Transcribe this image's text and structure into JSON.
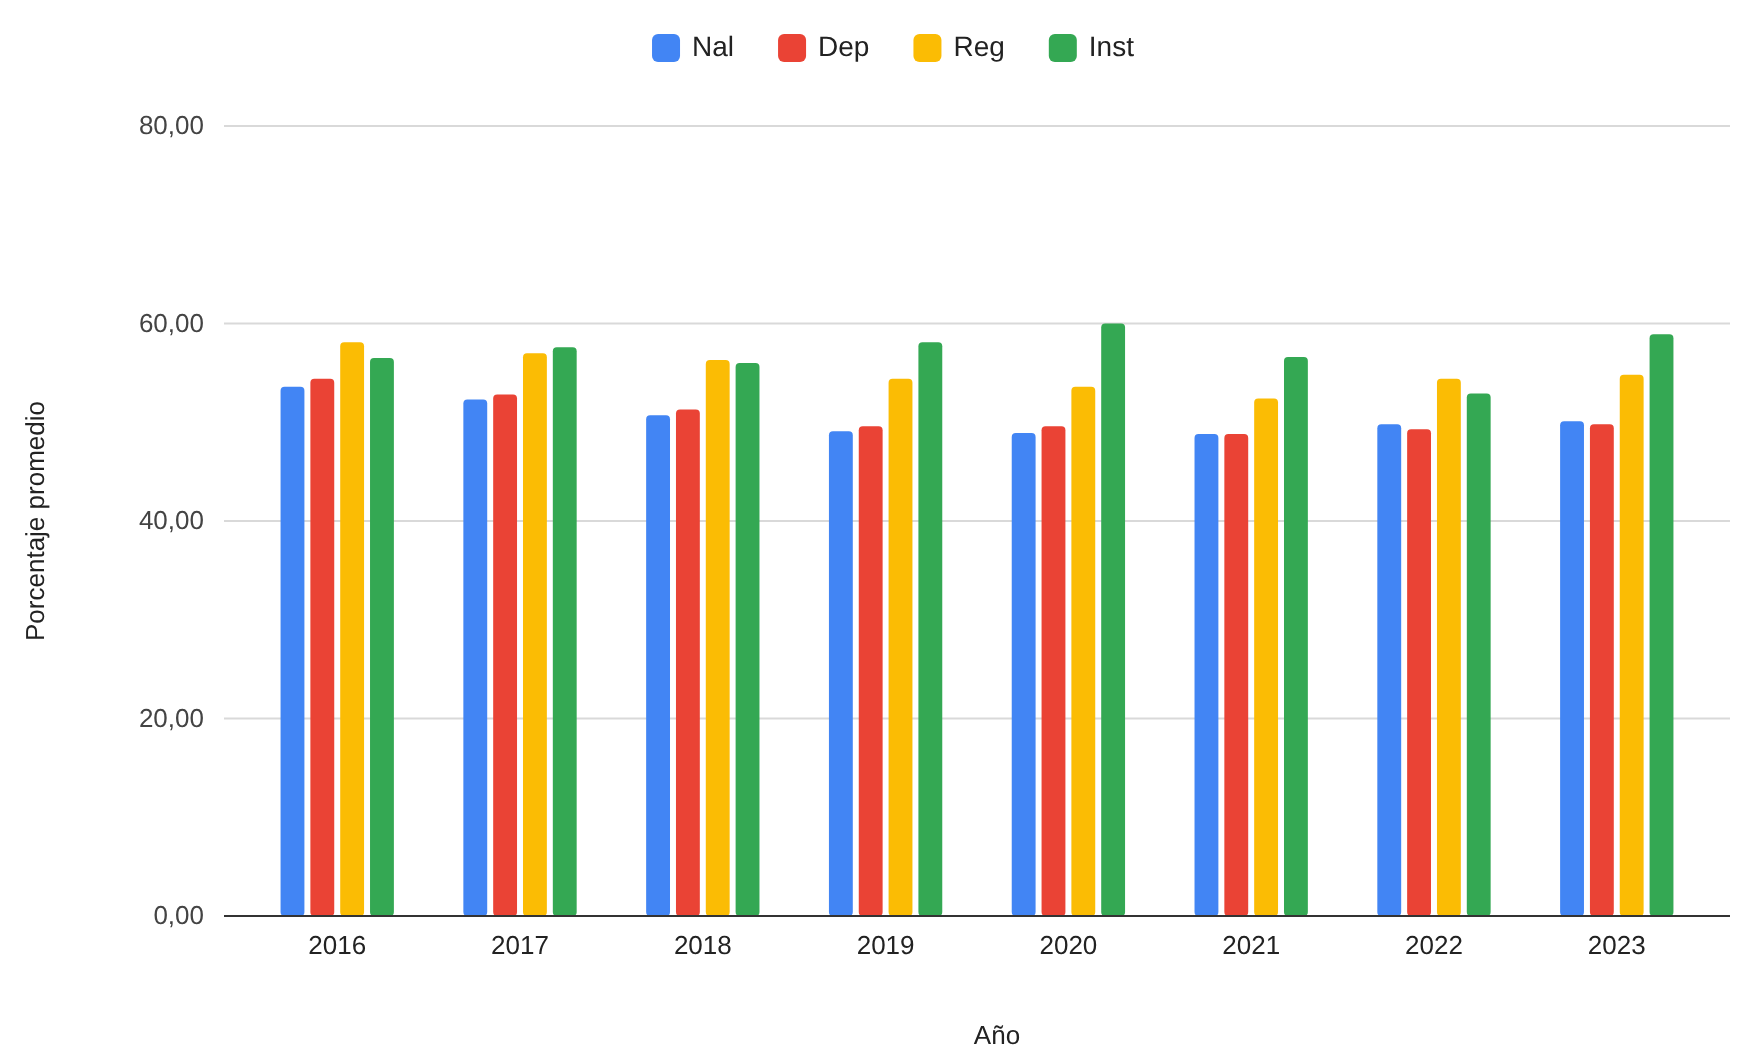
{
  "chart_data": {
    "type": "bar",
    "xlabel": "Año",
    "ylabel": "Porcentaje promedio",
    "categories": [
      "2016",
      "2017",
      "2018",
      "2019",
      "2020",
      "2021",
      "2022",
      "2023"
    ],
    "series": [
      {
        "name": "Nal",
        "color": "#4285f4",
        "values": [
          53.6,
          52.3,
          50.7,
          49.1,
          48.9,
          48.8,
          49.8,
          50.1
        ]
      },
      {
        "name": "Dep",
        "color": "#ea4335",
        "values": [
          54.4,
          52.8,
          51.3,
          49.6,
          49.6,
          48.8,
          49.3,
          49.8
        ]
      },
      {
        "name": "Reg",
        "color": "#fbbc04",
        "values": [
          58.1,
          57.0,
          56.3,
          54.4,
          53.6,
          52.4,
          54.4,
          54.8
        ]
      },
      {
        "name": "Inst",
        "color": "#34a853",
        "values": [
          56.5,
          57.6,
          56.0,
          58.1,
          60.0,
          56.6,
          52.9,
          58.9
        ]
      }
    ],
    "ylim": [
      0,
      80
    ],
    "yticks": [
      {
        "value": 0,
        "label": "0,00"
      },
      {
        "value": 20,
        "label": "20,00"
      },
      {
        "value": 40,
        "label": "40,00"
      },
      {
        "value": 60,
        "label": "60,00"
      },
      {
        "value": 80,
        "label": "80,00"
      }
    ],
    "grid": "y",
    "legend": "top"
  }
}
